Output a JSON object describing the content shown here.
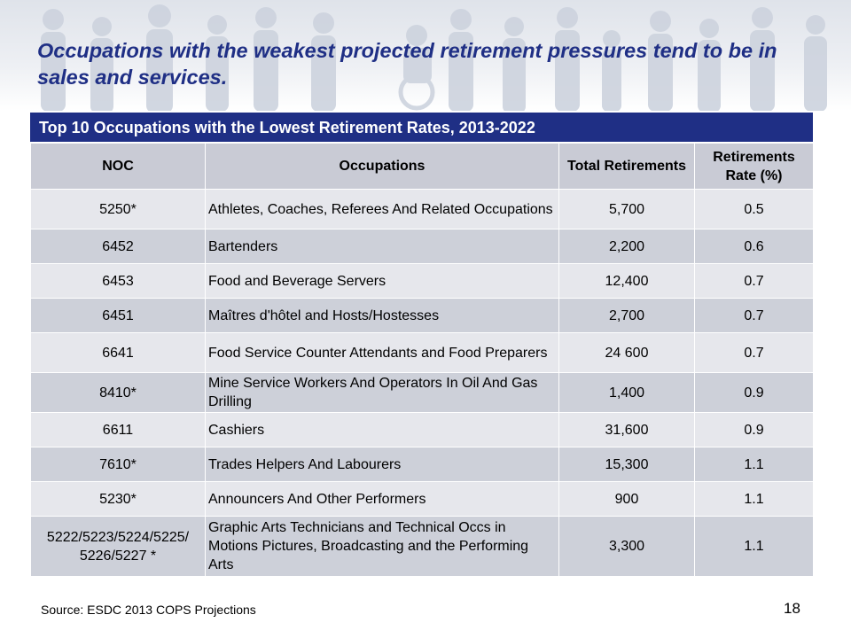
{
  "slide": {
    "title": "Occupations with the weakest projected retirement pressures tend to be in sales and services.",
    "source": "Source: ESDC 2013 COPS Projections",
    "page_number": "18"
  },
  "table": {
    "caption": "Top 10 Occupations with the Lowest Retirement Rates, 2013-2022",
    "headers": {
      "noc": "NOC",
      "occupations": "Occupations",
      "total_retirements": "Total Retirements",
      "retirement_rate": "Retirements Rate (%)"
    },
    "rows": [
      {
        "noc": "5250*",
        "occupation": "Athletes, Coaches, Referees And Related Occupations",
        "total": "5,700",
        "rate": "0.5"
      },
      {
        "noc": "6452",
        "occupation": "Bartenders",
        "total": "2,200",
        "rate": "0.6"
      },
      {
        "noc": "6453",
        "occupation": "Food and Beverage Servers",
        "total": "12,400",
        "rate": "0.7"
      },
      {
        "noc": "6451",
        "occupation": "Maîtres d'hôtel and Hosts/Hostesses",
        "total": "2,700",
        "rate": "0.7"
      },
      {
        "noc": "6641",
        "occupation": "Food Service Counter Attendants and Food Preparers",
        "total": "24 600",
        "rate": "0.7"
      },
      {
        "noc": "8410*",
        "occupation": "Mine Service Workers And Operators In Oil And Gas Drilling",
        "total": "1,400",
        "rate": "0.9"
      },
      {
        "noc": "6611",
        "occupation": "Cashiers",
        "total": "31,600",
        "rate": "0.9"
      },
      {
        "noc": "7610*",
        "occupation": "Trades Helpers And Labourers",
        "total": "15,300",
        "rate": "1.1"
      },
      {
        "noc": "5230*",
        "occupation": "Announcers And Other Performers",
        "total": "900",
        "rate": "1.1"
      },
      {
        "noc": "5222/5223/5224/5225/ 5226/5227 *",
        "occupation": "Graphic Arts Technicians and Technical Occs in Motions Pictures, Broadcasting and the Performing Arts",
        "total": "3,300",
        "rate": "1.1"
      }
    ]
  },
  "colors": {
    "title": "#1f2f85",
    "caption_bar": "#1f2f85",
    "header_bg": "#c9cbd5",
    "row_light": "#e6e7ec",
    "row_dark": "#cdd0d9"
  }
}
